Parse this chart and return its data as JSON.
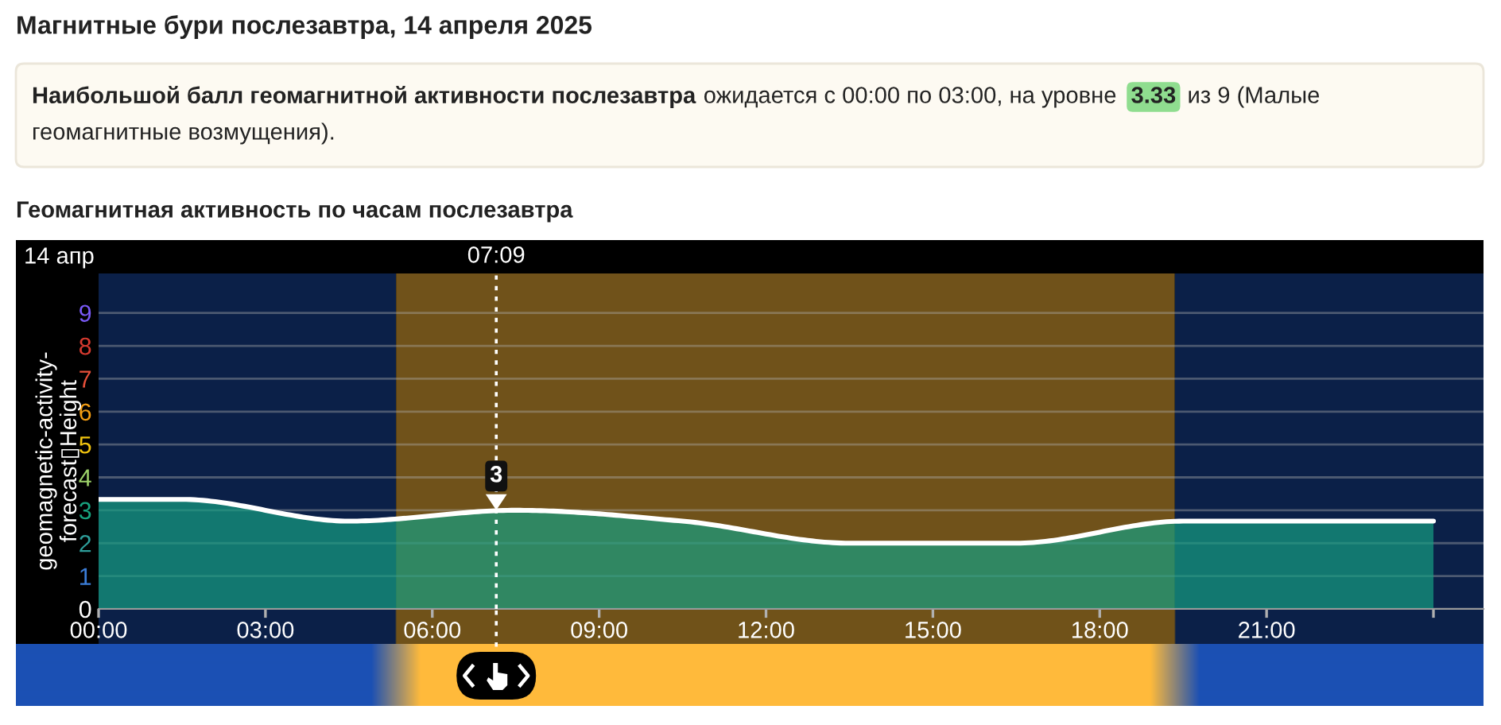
{
  "chart_data": {
    "type": "area",
    "title": "Магнитные бури послезавтра, 14 апреля 2025",
    "subtitle": "Геомагнитная активность по часам послезавтра",
    "ylabel": "geomagnetic-activity-\nforecast▯Height",
    "annotations": [
      "Наибольшой балл геомагнитной активности послезавтра",
      "ожидается с 00:00 по 03:00, на уровне",
      "3.33",
      "из 9 (Малые",
      "геомагнитные возмущения).",
      "14 апр",
      {
        "text": "3",
        "x": 7.15,
        "y": 3.0
      }
    ],
    "x": [
      0,
      1.5,
      4.5,
      7.5,
      10.5,
      13.5,
      16.5,
      19.5,
      24
    ],
    "series": [
      {
        "color": "#169e82",
        "values": [
          3.33,
          3.33,
          2.67,
          3.0,
          2.67,
          2.0,
          2.0,
          2.67,
          2.67
        ]
      }
    ],
    "xlim": [
      0,
      24.9
    ],
    "ylim": [
      0,
      10.2
    ],
    "xticks": [
      {
        "value": 0,
        "label": "00:00"
      },
      {
        "value": 3,
        "label": "03:00"
      },
      {
        "value": 6,
        "label": "06:00"
      },
      {
        "value": 9,
        "label": "09:00"
      },
      {
        "value": 12,
        "label": "12:00"
      },
      {
        "value": 15,
        "label": "15:00"
      },
      {
        "value": 18,
        "label": "18:00"
      },
      {
        "value": 21,
        "label": "21:00"
      },
      {
        "value": 24,
        "label": null
      }
    ],
    "yticks": [
      0,
      1,
      2,
      3,
      4,
      5,
      6,
      7,
      8,
      9
    ],
    "grid": "y",
    "bands": [
      {
        "axis": "x",
        "from": 0,
        "to": 5.35,
        "color": "#0b2048"
      },
      {
        "axis": "x",
        "from": 5.35,
        "to": 19.35,
        "color": "#70521a"
      },
      {
        "axis": "x",
        "from": 19.35,
        "to": 24.9,
        "color": "#0b2048"
      }
    ],
    "ref_lines": [
      {
        "axis": "x",
        "value": 7.15,
        "label": "07:09",
        "color": "#ffffff",
        "line_style": "dotted"
      }
    ]
  }
}
